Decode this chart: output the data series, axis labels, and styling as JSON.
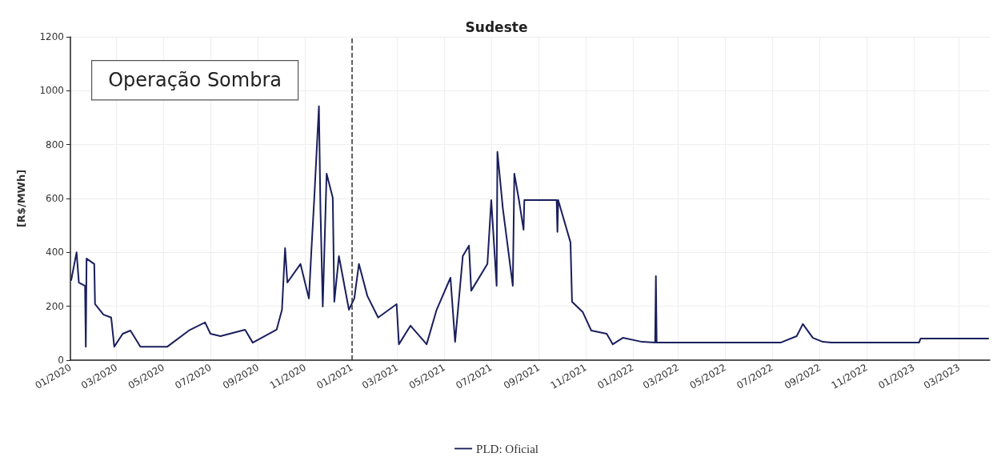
{
  "chart_data": {
    "type": "line",
    "title": "Sudeste",
    "ylabel": "[R$/MWh]",
    "annotations": [
      "Operação Sombra"
    ],
    "xlim": [
      "2020-01-01",
      "2023-04-10"
    ],
    "xticks": [
      {
        "value": "2020-01-01",
        "label": "01/2020"
      },
      {
        "value": "2020-03-01",
        "label": "03/2020"
      },
      {
        "value": "2020-05-01",
        "label": "05/2020"
      },
      {
        "value": "2020-07-01",
        "label": "07/2020"
      },
      {
        "value": "2020-09-01",
        "label": "09/2020"
      },
      {
        "value": "2020-11-01",
        "label": "11/2020"
      },
      {
        "value": "2021-01-01",
        "label": "01/2021"
      },
      {
        "value": "2021-03-01",
        "label": "03/2021"
      },
      {
        "value": "2021-05-01",
        "label": "05/2021"
      },
      {
        "value": "2021-07-01",
        "label": "07/2021"
      },
      {
        "value": "2021-09-01",
        "label": "09/2021"
      },
      {
        "value": "2021-11-01",
        "label": "11/2021"
      },
      {
        "value": "2022-01-01",
        "label": "01/2022"
      },
      {
        "value": "2022-03-01",
        "label": "03/2022"
      },
      {
        "value": "2022-05-01",
        "label": "05/2022"
      },
      {
        "value": "2022-07-01",
        "label": "07/2022"
      },
      {
        "value": "2022-09-01",
        "label": "09/2022"
      },
      {
        "value": "2022-11-01",
        "label": "11/2022"
      },
      {
        "value": "2023-01-01",
        "label": "01/2023"
      },
      {
        "value": "2023-03-01",
        "label": "03/2023"
      }
    ],
    "ylim": [
      0,
      1200
    ],
    "yticks": [
      0,
      200,
      400,
      600,
      800,
      1000,
      1200
    ],
    "grid": true,
    "legend": "bottom",
    "marker": "none",
    "line_style": "solid",
    "ref_lines": [
      {
        "axis": "x",
        "value": "2021-01-01",
        "label": null,
        "color": "#333333",
        "line_style": "dashed"
      }
    ],
    "series": [
      {
        "name": "PLD: Oficial",
        "color": "#1a1f5c",
        "x": [
          "2020-01-02",
          "2020-01-09",
          "2020-01-12",
          "2020-01-20",
          "2020-01-21",
          "2020-01-22",
          "2020-02-01",
          "2020-02-02",
          "2020-02-13",
          "2020-02-23",
          "2020-02-27",
          "2020-03-09",
          "2020-03-19",
          "2020-04-01",
          "2020-05-06",
          "2020-06-03",
          "2020-06-24",
          "2020-07-01",
          "2020-07-14",
          "2020-08-15",
          "2020-08-25",
          "2020-09-25",
          "2020-10-02",
          "2020-10-06",
          "2020-10-09",
          "2020-10-26",
          "2020-11-06",
          "2020-11-09",
          "2020-11-13",
          "2020-11-19",
          "2020-11-21",
          "2020-11-24",
          "2020-11-29",
          "2020-12-07",
          "2020-12-09",
          "2020-12-15",
          "2020-12-28",
          "2021-01-04",
          "2021-01-10",
          "2021-01-21",
          "2021-02-04",
          "2021-02-28",
          "2021-03-03",
          "2021-03-18",
          "2021-04-08",
          "2021-04-21",
          "2021-05-09",
          "2021-05-15",
          "2021-05-25",
          "2021-06-02",
          "2021-06-05",
          "2021-06-26",
          "2021-07-01",
          "2021-07-08",
          "2021-07-09",
          "2021-07-16",
          "2021-07-29",
          "2021-07-31",
          "2021-08-06",
          "2021-08-12",
          "2021-08-13",
          "2021-09-24",
          "2021-09-25",
          "2021-09-26",
          "2021-10-12",
          "2021-10-14",
          "2021-10-28",
          "2021-11-08",
          "2021-11-28",
          "2021-12-06",
          "2021-12-19",
          "2022-01-13",
          "2022-01-30",
          "2022-01-31",
          "2022-02-01",
          "2022-07-12",
          "2022-08-02",
          "2022-08-10",
          "2022-08-23",
          "2022-09-05",
          "2022-09-16",
          "2023-01-08",
          "2023-01-10",
          "2023-04-08"
        ],
        "values": [
          297,
          400,
          288,
          276,
          50,
          377,
          357,
          208,
          169,
          158,
          50,
          98,
          110,
          50,
          50,
          110,
          140,
          98,
          89,
          113,
          65,
          113,
          187,
          416,
          288,
          357,
          229,
          395,
          603,
          942,
          560,
          199,
          692,
          603,
          217,
          386,
          187,
          229,
          357,
          238,
          158,
          208,
          59,
          128,
          59,
          187,
          306,
          68,
          386,
          425,
          258,
          357,
          594,
          276,
          773,
          565,
          276,
          692,
          594,
          484,
          594,
          594,
          476,
          594,
          437,
          217,
          178,
          110,
          98,
          59,
          83,
          68,
          65,
          312,
          65,
          65,
          89,
          134,
          83,
          68,
          65,
          65,
          80,
          80
        ]
      }
    ]
  }
}
